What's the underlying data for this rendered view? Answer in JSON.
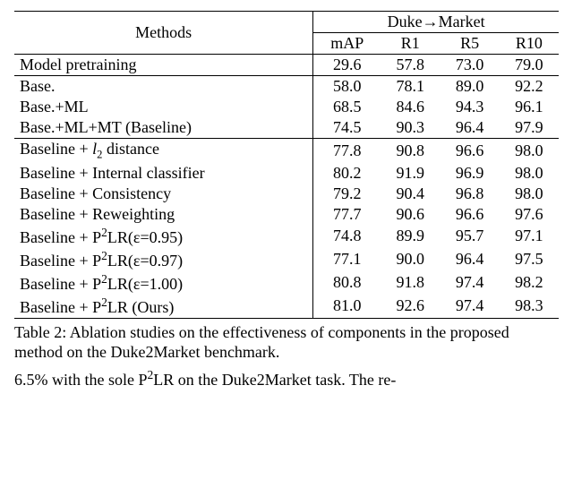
{
  "table": {
    "header": {
      "methods": "Methods",
      "group": "Duke→Market",
      "metrics": [
        "mAP",
        "R1",
        "R5",
        "R10"
      ]
    },
    "sections": [
      {
        "topRule": "thin",
        "rows": [
          {
            "label_html": "Model pretraining",
            "vals": [
              "29.6",
              "57.8",
              "73.0",
              "79.0"
            ]
          }
        ]
      },
      {
        "topRule": "thin",
        "rows": [
          {
            "label_html": "Base.",
            "vals": [
              "58.0",
              "78.1",
              "89.0",
              "92.2"
            ]
          },
          {
            "label_html": "Base.+ML",
            "vals": [
              "68.5",
              "84.6",
              "94.3",
              "96.1"
            ]
          },
          {
            "label_html": "Base.+ML+MT (Baseline)",
            "vals": [
              "74.5",
              "90.3",
              "96.4",
              "97.9"
            ]
          }
        ]
      },
      {
        "topRule": "thin",
        "rows": [
          {
            "label_html": "Baseline + <i>l</i><sub>2</sub> distance",
            "vals": [
              "77.8",
              "90.8",
              "96.6",
              "98.0"
            ]
          },
          {
            "label_html": "Baseline + Internal classifier",
            "vals": [
              "80.2",
              "91.9",
              "96.9",
              "98.0"
            ]
          },
          {
            "label_html": "Baseline + Consistency",
            "vals": [
              "79.2",
              "90.4",
              "96.8",
              "98.0"
            ]
          },
          {
            "label_html": "Baseline + Reweighting",
            "vals": [
              "77.7",
              "90.6",
              "96.6",
              "97.6"
            ]
          },
          {
            "label_html": "Baseline + P<sup>2</sup>LR(&epsilon;=0.95)",
            "vals": [
              "74.8",
              "89.9",
              "95.7",
              "97.1"
            ]
          },
          {
            "label_html": "Baseline + P<sup>2</sup>LR(&epsilon;=0.97)",
            "vals": [
              "77.1",
              "90.0",
              "96.4",
              "97.5"
            ]
          },
          {
            "label_html": "Baseline + P<sup>2</sup>LR(&epsilon;=1.00)",
            "vals": [
              "80.8",
              "91.8",
              "97.4",
              "98.2"
            ]
          },
          {
            "label_html": "Baseline + P<sup>2</sup>LR (Ours)",
            "vals": [
              "81.0",
              "92.6",
              "97.4",
              "98.3"
            ]
          }
        ]
      }
    ]
  },
  "caption_html": "Table 2: Ablation studies on the effectiveness of components in the proposed method on the Duke2Market benchmark.",
  "fragment_html": "6.5% with the sole P<sup>2</sup>LR on the Duke2Market task. The re-"
}
